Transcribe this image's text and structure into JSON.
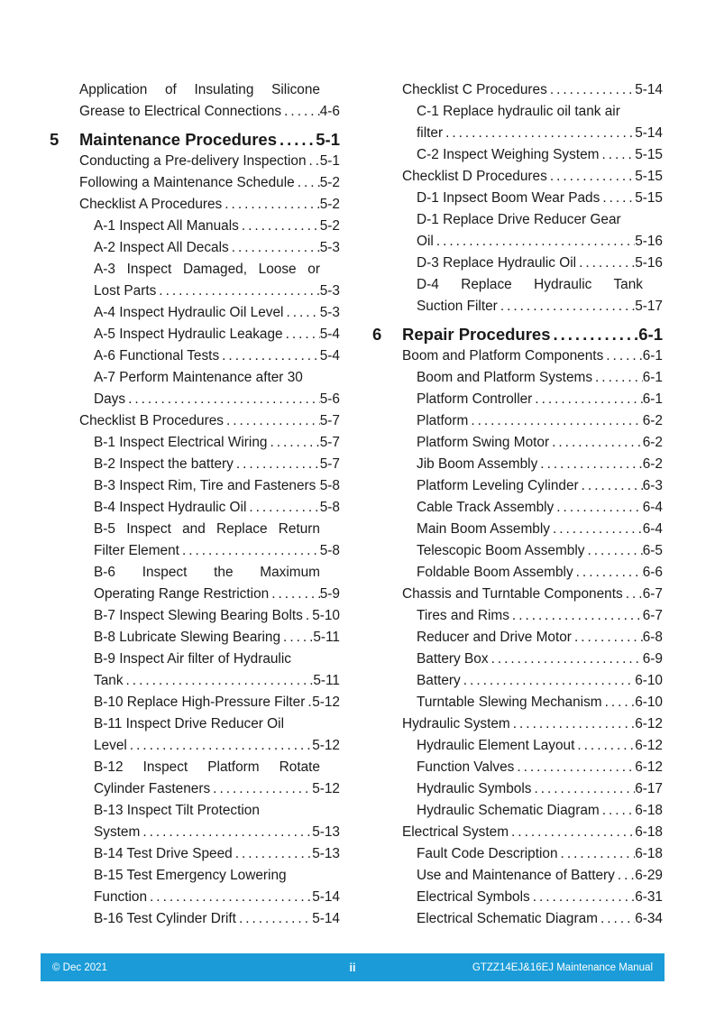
{
  "document": {
    "text_color": "#1a1a1a",
    "footer": {
      "left": "© Dec 2021",
      "center": "ii",
      "right": "GTZZ14EJ&16EJ Maintenance Manual",
      "bar_color": "#1b9cd8"
    },
    "toc": {
      "left_column": [
        {
          "text": "Application of Insulating Silicone",
          "level": 1,
          "justify": true
        },
        {
          "text": "Grease to Electrical Connections",
          "page": "4-6",
          "level": 1
        },
        {
          "heading": true,
          "num": "5",
          "text": "Maintenance Procedures",
          "page": "5-1"
        },
        {
          "text": "Conducting a Pre-delivery Inspection",
          "page": "5-1",
          "level": 1
        },
        {
          "text": "Following a Maintenance Schedule",
          "page": "5-2",
          "level": 1
        },
        {
          "text": "Checklist A Procedures",
          "page": "5-2",
          "level": 1
        },
        {
          "text": "A-1 Inspect All Manuals",
          "page": "5-2",
          "level": 2
        },
        {
          "text": "A-2 Inspect All Decals",
          "page": "5-3",
          "level": 2
        },
        {
          "text": "A-3 Inspect Damaged, Loose or",
          "level": 2,
          "justify": true
        },
        {
          "text": "Lost Parts",
          "page": "5-3",
          "level": 2
        },
        {
          "text": "A-4 Inspect Hydraulic Oil Level",
          "page": "5-3",
          "level": 2
        },
        {
          "text": "A-5 Inspect Hydraulic Leakage",
          "page": "5-4",
          "level": 2
        },
        {
          "text": "A-6 Functional Tests",
          "page": "5-4",
          "level": 2
        },
        {
          "text": "A-7 Perform Maintenance after 30",
          "level": 2
        },
        {
          "text": "Days",
          "page": "5-6",
          "level": 2
        },
        {
          "text": "Checklist B Procedures",
          "page": "5-7",
          "level": 1
        },
        {
          "text": "B-1 Inspect Electrical Wiring",
          "page": "5-7",
          "level": 2
        },
        {
          "text": "B-2 Inspect the battery",
          "page": "5-7",
          "level": 2
        },
        {
          "text": "B-3 Inspect Rim, Tire and Fasteners",
          "page": "5-8",
          "level": 2
        },
        {
          "text": "B-4 Inspect Hydraulic Oil",
          "page": "5-8",
          "level": 2
        },
        {
          "text": "B-5 Inspect and Replace Return",
          "level": 2,
          "justify": true
        },
        {
          "text": "Filter Element",
          "page": "5-8",
          "level": 2
        },
        {
          "text": "B-6 Inspect the Maximum",
          "level": 2,
          "justify": true
        },
        {
          "text": "Operating Range Restriction",
          "page": "5-9",
          "level": 2
        },
        {
          "text": "B-7 Inspect Slewing Bearing Bolts",
          "page": "5-10",
          "level": 2
        },
        {
          "text": "B-8 Lubricate Slewing Bearing",
          "page": "5-11",
          "level": 2
        },
        {
          "text": "B-9 Inspect Air filter of Hydraulic",
          "level": 2
        },
        {
          "text": "Tank",
          "page": "5-11",
          "level": 2
        },
        {
          "text": "B-10 Replace High-Pressure Filter",
          "page": "5-12",
          "level": 2
        },
        {
          "text": "B-11 Inspect Drive Reducer Oil",
          "level": 2
        },
        {
          "text": "Level",
          "page": "5-12",
          "level": 2
        },
        {
          "text": "B-12 Inspect Platform Rotate",
          "level": 2,
          "justify": true
        },
        {
          "text": "Cylinder Fasteners",
          "page": "5-12",
          "level": 2
        },
        {
          "text": "B-13 Inspect Tilt Protection",
          "level": 2
        },
        {
          "text": "System",
          "page": "5-13",
          "level": 2
        },
        {
          "text": "B-14 Test Drive Speed",
          "page": "5-13",
          "level": 2
        },
        {
          "text": "B-15 Test Emergency Lowering",
          "level": 2
        },
        {
          "text": "Function",
          "page": "5-14",
          "level": 2
        },
        {
          "text": "B-16 Test Cylinder Drift",
          "page": "5-14",
          "level": 2
        }
      ],
      "right_column": [
        {
          "text": "Checklist C Procedures",
          "page": "5-14",
          "level": 1
        },
        {
          "text": "C-1 Replace hydraulic oil tank air",
          "level": 2
        },
        {
          "text": "filter",
          "page": "5-14",
          "level": 2
        },
        {
          "text": "C-2 Inspect Weighing System",
          "page": "5-15",
          "level": 2
        },
        {
          "text": "Checklist D Procedures",
          "page": "5-15",
          "level": 1
        },
        {
          "text": "D-1 Inpsect Boom Wear Pads",
          "page": "5-15",
          "level": 2
        },
        {
          "text": "D-1 Replace Drive Reducer Gear",
          "level": 2
        },
        {
          "text": "Oil",
          "page": "5-16",
          "level": 2
        },
        {
          "text": "D-3 Replace Hydraulic Oil",
          "page": "5-16",
          "level": 2
        },
        {
          "text": "D-4 Replace Hydraulic Tank",
          "level": 2,
          "justify": true
        },
        {
          "text": "Suction Filter",
          "page": "5-17",
          "level": 2
        },
        {
          "heading": true,
          "num": "6",
          "text": "Repair Procedures",
          "page": "6-1"
        },
        {
          "text": "Boom and Platform Components",
          "page": "6-1",
          "level": 1
        },
        {
          "text": "Boom and Platform Systems",
          "page": "6-1",
          "level": 2
        },
        {
          "text": "Platform Controller",
          "page": "6-1",
          "level": 2
        },
        {
          "text": "Platform",
          "page": "6-2",
          "level": 2
        },
        {
          "text": "Platform Swing Motor",
          "page": "6-2",
          "level": 2
        },
        {
          "text": "Jib Boom Assembly",
          "page": "6-2",
          "level": 2
        },
        {
          "text": "Platform Leveling Cylinder",
          "page": "6-3",
          "level": 2
        },
        {
          "text": "Cable Track Assembly",
          "page": "6-4",
          "level": 2
        },
        {
          "text": "Main Boom Assembly",
          "page": "6-4",
          "level": 2
        },
        {
          "text": "Telescopic Boom Assembly",
          "page": "6-5",
          "level": 2
        },
        {
          "text": "Foldable Boom Assembly",
          "page": "6-6",
          "level": 2
        },
        {
          "text": "Chassis and Turntable Components",
          "page": "6-7",
          "level": 1
        },
        {
          "text": "Tires and Rims",
          "page": "6-7",
          "level": 2
        },
        {
          "text": "Reducer and Drive Motor",
          "page": "6-8",
          "level": 2
        },
        {
          "text": "Battery Box",
          "page": "6-9",
          "level": 2
        },
        {
          "text": "Battery",
          "page": "6-10",
          "level": 2
        },
        {
          "text": "Turntable Slewing Mechanism",
          "page": "6-10",
          "level": 2
        },
        {
          "text": "Hydraulic System",
          "page": "6-12",
          "level": 1
        },
        {
          "text": "Hydraulic Element Layout",
          "page": "6-12",
          "level": 2
        },
        {
          "text": "Function Valves",
          "page": "6-12",
          "level": 2
        },
        {
          "text": "Hydraulic Symbols",
          "page": "6-17",
          "level": 2
        },
        {
          "text": "Hydraulic Schematic Diagram",
          "page": "6-18",
          "level": 2
        },
        {
          "text": "Electrical System",
          "page": "6-18",
          "level": 1
        },
        {
          "text": "Fault Code Description",
          "page": "6-18",
          "level": 2
        },
        {
          "text": "Use and Maintenance of Battery",
          "page": "6-29",
          "level": 2
        },
        {
          "text": "Electrical Symbols",
          "page": "6-31",
          "level": 2
        },
        {
          "text": "Electrical Schematic Diagram",
          "page": "6-34",
          "level": 2
        }
      ]
    }
  }
}
